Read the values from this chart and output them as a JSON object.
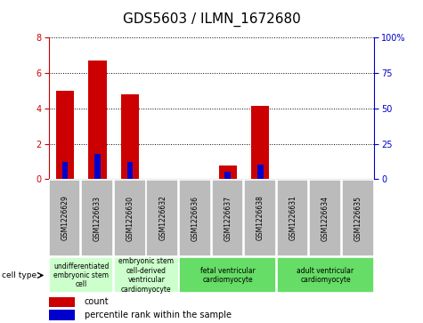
{
  "title": "GDS5603 / ILMN_1672680",
  "samples": [
    "GSM1226629",
    "GSM1226633",
    "GSM1226630",
    "GSM1226632",
    "GSM1226636",
    "GSM1226637",
    "GSM1226638",
    "GSM1226631",
    "GSM1226634",
    "GSM1226635"
  ],
  "count_values": [
    5.0,
    6.7,
    4.8,
    0.0,
    0.0,
    0.75,
    4.15,
    0.0,
    0.0,
    0.0
  ],
  "percentile_values": [
    12,
    18,
    12,
    0,
    0,
    5,
    10,
    0,
    0,
    0
  ],
  "ylim_left": [
    0,
    8
  ],
  "ylim_right": [
    0,
    100
  ],
  "yticks_left": [
    0,
    2,
    4,
    6,
    8
  ],
  "yticks_right": [
    0,
    25,
    50,
    75,
    100
  ],
  "yticklabels_right": [
    "0",
    "25",
    "50",
    "75",
    "100%"
  ],
  "bar_color_red": "#cc0000",
  "bar_color_blue": "#0000cc",
  "bg_sample_row": "#bbbbbb",
  "group_labels": [
    {
      "label": "undifferentiated\nembryonic stem\ncell",
      "start": 0,
      "end": 2,
      "color": "#ccffcc"
    },
    {
      "label": "embryonic stem\ncell-derived\nventricular\ncardiomyocyte",
      "start": 2,
      "end": 4,
      "color": "#ccffcc"
    },
    {
      "label": "fetal ventricular\ncardiomyocyte",
      "start": 4,
      "end": 7,
      "color": "#66dd66"
    },
    {
      "label": "adult ventricular\ncardiomyocyte",
      "start": 7,
      "end": 10,
      "color": "#66dd66"
    }
  ],
  "cell_type_label": "cell type",
  "legend_count_label": "count",
  "legend_pct_label": "percentile rank within the sample",
  "title_fontsize": 11,
  "tick_fontsize": 7,
  "sample_fontsize": 5.5,
  "group_fontsize": 5.5,
  "legend_fontsize": 7
}
